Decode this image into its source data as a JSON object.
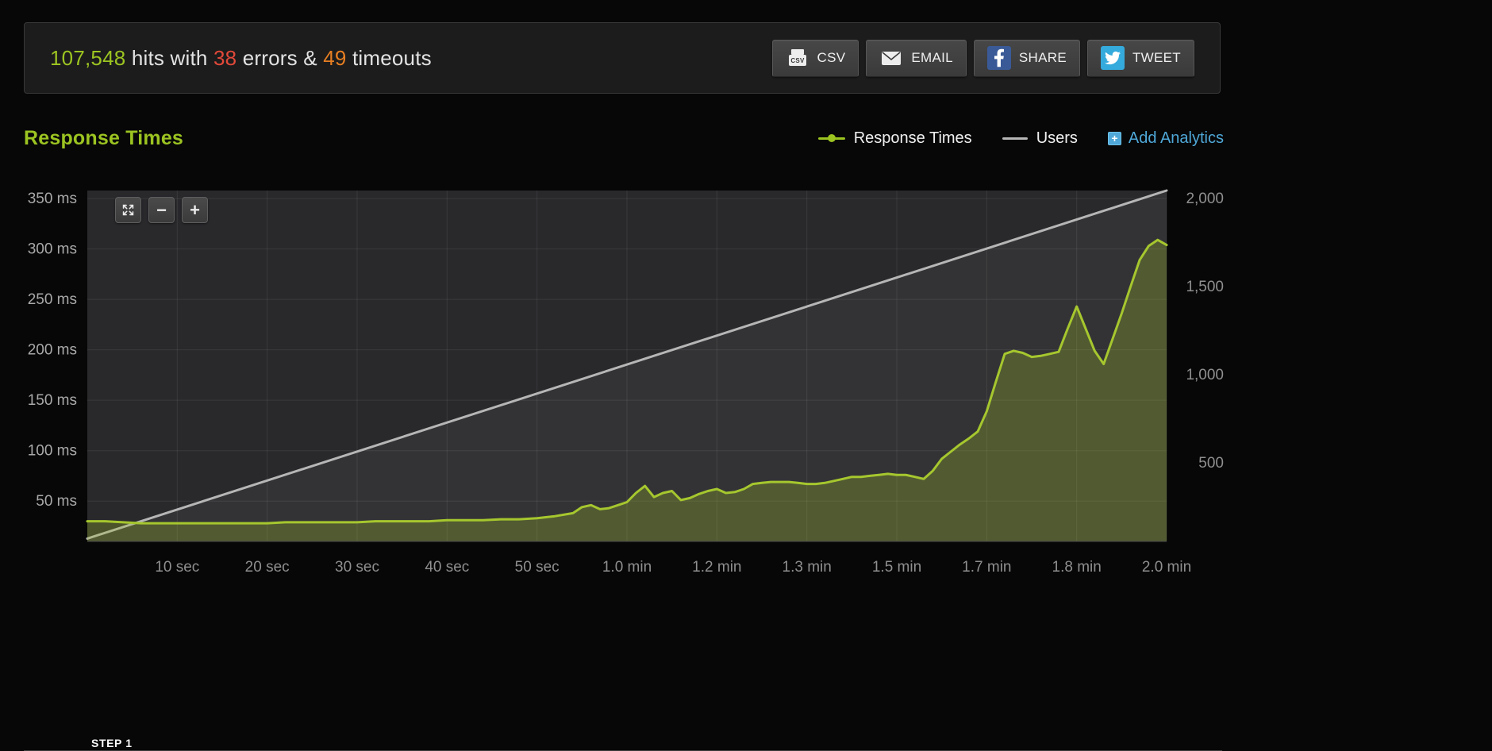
{
  "theme": {
    "green": "#9cc421",
    "red": "#e2493a",
    "orange": "#e67e22",
    "blue": "#4fa8d8",
    "gray": "#b6b6b6",
    "facebook": "#3a5a97",
    "twitter": "#35aadc"
  },
  "stats": {
    "hits": "107,548",
    "hits_label": " hits with ",
    "errors": "38",
    "errors_label": " errors & ",
    "timeouts": "49",
    "timeouts_label": " timeouts"
  },
  "actions": {
    "csv": "CSV",
    "email": "EMAIL",
    "share": "SHARE",
    "tweet": "TWEET"
  },
  "section": {
    "title": "Response Times"
  },
  "legend": {
    "response_times": "Response Times",
    "users": "Users",
    "add_analytics": "Add Analytics"
  },
  "zoom": {
    "out": "−",
    "in": "+"
  },
  "footer": {
    "step_label": "STEP 1"
  },
  "chart_data": {
    "type": "area",
    "title": "Response Times",
    "plot_bg": "#29292c",
    "grid_color": "rgba(255,255,255,0.08)",
    "x_axis": {
      "min": 0,
      "max": 120,
      "unit": "seconds",
      "ticks": [
        {
          "t": 10,
          "label": "10 sec"
        },
        {
          "t": 20,
          "label": "20 sec"
        },
        {
          "t": 30,
          "label": "30 sec"
        },
        {
          "t": 40,
          "label": "40 sec"
        },
        {
          "t": 50,
          "label": "50 sec"
        },
        {
          "t": 60,
          "label": "1.0 min"
        },
        {
          "t": 70,
          "label": "1.2 min"
        },
        {
          "t": 80,
          "label": "1.3 min"
        },
        {
          "t": 90,
          "label": "1.5 min"
        },
        {
          "t": 100,
          "label": "1.7 min"
        },
        {
          "t": 110,
          "label": "1.8 min"
        },
        {
          "t": 120,
          "label": "2.0 min"
        }
      ]
    },
    "y_left": {
      "unit": "ms",
      "min": 10,
      "max": 358,
      "ticks": [
        {
          "value": 50,
          "label": "50 ms"
        },
        {
          "value": 100,
          "label": "100 ms"
        },
        {
          "value": 150,
          "label": "150 ms"
        },
        {
          "value": 200,
          "label": "200 ms"
        },
        {
          "value": 250,
          "label": "250 ms"
        },
        {
          "value": 300,
          "label": "300 ms"
        },
        {
          "value": 350,
          "label": "350 ms"
        }
      ]
    },
    "y_right": {
      "unit": "users",
      "min": 54,
      "max": 2045,
      "ticks": [
        {
          "value": 500,
          "label": "500"
        },
        {
          "value": 1000,
          "label": "1,000"
        },
        {
          "value": 1500,
          "label": "1,500"
        },
        {
          "value": 2000,
          "label": "2,000"
        }
      ]
    },
    "series": [
      {
        "name": "Users",
        "axis": "right",
        "kind": "line",
        "color": "#b6b6b6",
        "fill": "rgba(255,255,255,0.05)",
        "points": [
          [
            0,
            70
          ],
          [
            120,
            2045
          ]
        ]
      },
      {
        "name": "Response Times",
        "axis": "left",
        "kind": "area",
        "color": "#a6c72e",
        "fill": "rgba(160,195,35,0.28)",
        "points": [
          [
            0,
            30
          ],
          [
            2,
            30
          ],
          [
            4,
            29
          ],
          [
            6,
            28
          ],
          [
            8,
            28
          ],
          [
            10,
            28
          ],
          [
            12,
            28
          ],
          [
            14,
            28
          ],
          [
            16,
            28
          ],
          [
            18,
            28
          ],
          [
            20,
            28
          ],
          [
            22,
            29
          ],
          [
            24,
            29
          ],
          [
            26,
            29
          ],
          [
            28,
            29
          ],
          [
            30,
            29
          ],
          [
            32,
            30
          ],
          [
            34,
            30
          ],
          [
            36,
            30
          ],
          [
            38,
            30
          ],
          [
            40,
            31
          ],
          [
            42,
            31
          ],
          [
            44,
            31
          ],
          [
            46,
            32
          ],
          [
            48,
            32
          ],
          [
            50,
            33
          ],
          [
            52,
            35
          ],
          [
            54,
            38
          ],
          [
            55,
            44
          ],
          [
            56,
            46
          ],
          [
            57,
            42
          ],
          [
            58,
            43
          ],
          [
            59,
            46
          ],
          [
            60,
            49
          ],
          [
            61,
            58
          ],
          [
            62,
            65
          ],
          [
            63,
            54
          ],
          [
            64,
            58
          ],
          [
            65,
            60
          ],
          [
            66,
            51
          ],
          [
            67,
            53
          ],
          [
            68,
            57
          ],
          [
            69,
            60
          ],
          [
            70,
            62
          ],
          [
            71,
            58
          ],
          [
            72,
            59
          ],
          [
            73,
            62
          ],
          [
            74,
            67
          ],
          [
            75,
            68
          ],
          [
            76,
            69
          ],
          [
            77,
            69
          ],
          [
            78,
            69
          ],
          [
            79,
            68
          ],
          [
            80,
            67
          ],
          [
            81,
            67
          ],
          [
            82,
            68
          ],
          [
            83,
            70
          ],
          [
            84,
            72
          ],
          [
            85,
            74
          ],
          [
            86,
            74
          ],
          [
            87,
            75
          ],
          [
            88,
            76
          ],
          [
            89,
            77
          ],
          [
            90,
            76
          ],
          [
            91,
            76
          ],
          [
            92,
            74
          ],
          [
            93,
            72
          ],
          [
            94,
            80
          ],
          [
            95,
            92
          ],
          [
            96,
            99
          ],
          [
            97,
            106
          ],
          [
            98,
            112
          ],
          [
            99,
            119
          ],
          [
            100,
            139
          ],
          [
            101,
            168
          ],
          [
            102,
            196
          ],
          [
            103,
            199
          ],
          [
            104,
            197
          ],
          [
            105,
            193
          ],
          [
            106,
            194
          ],
          [
            107,
            196
          ],
          [
            108,
            198
          ],
          [
            109,
            221
          ],
          [
            110,
            243
          ],
          [
            111,
            221
          ],
          [
            112,
            199
          ],
          [
            113,
            186
          ],
          [
            114,
            211
          ],
          [
            115,
            236
          ],
          [
            116,
            263
          ],
          [
            117,
            289
          ],
          [
            118,
            303
          ],
          [
            119,
            309
          ],
          [
            120,
            304
          ]
        ]
      }
    ]
  }
}
